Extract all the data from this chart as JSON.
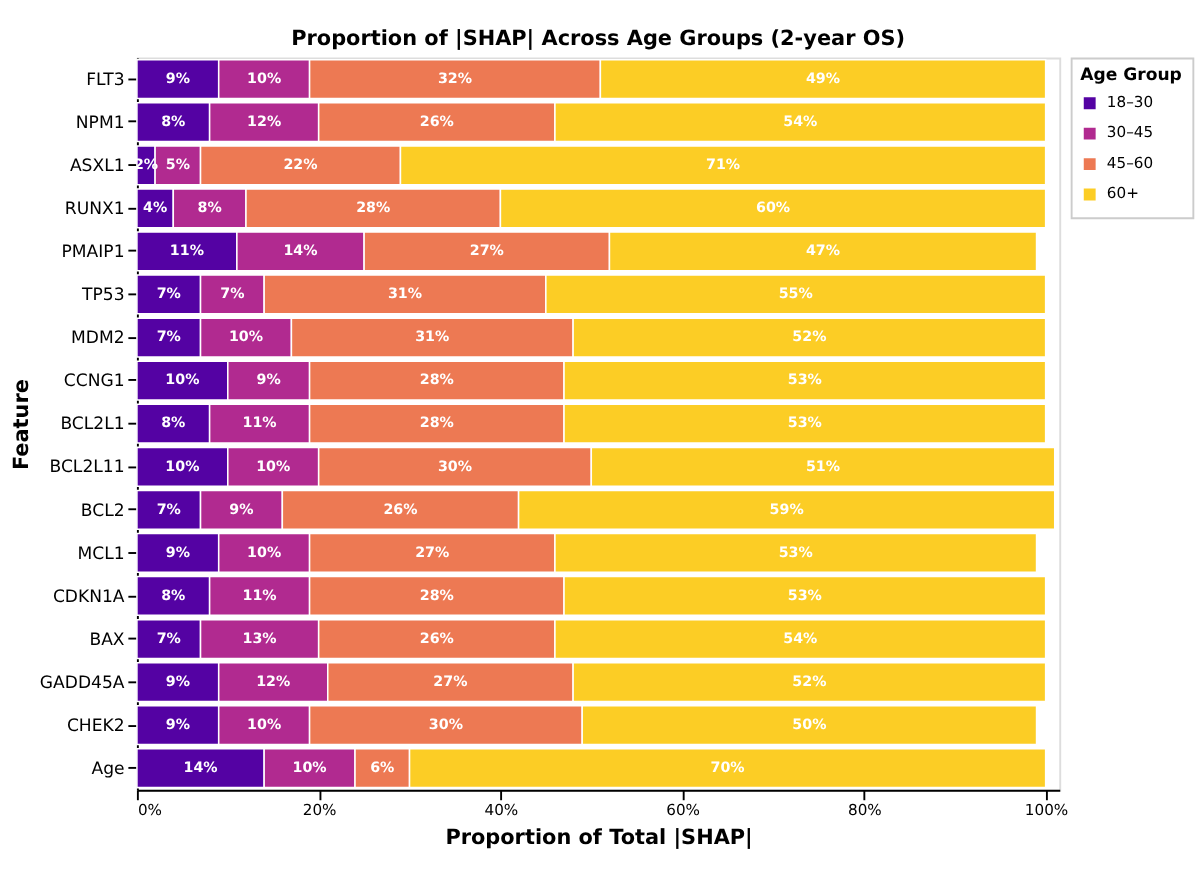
{
  "chart_data": {
    "type": "bar",
    "orientation": "horizontal",
    "stacked": true,
    "title": "Proportion of |SHAP| Across Age Groups (2-year OS)",
    "xlabel": "Proportion of Total |SHAP|",
    "ylabel": "Feature",
    "legend_title": "Age Group",
    "legend": "top right",
    "grid": false,
    "categories": [
      "FLT3",
      "NPM1",
      "ASXL1",
      "RUNX1",
      "PMAIP1",
      "TP53",
      "MDM2",
      "CCNG1",
      "BCL2L1",
      "BCL2L11",
      "BCL2",
      "MCL1",
      "CDKN1A",
      "BAX",
      "GADD45A",
      "CHEK2",
      "Age"
    ],
    "xlim": [
      0,
      1.015
    ],
    "xticks": [
      {
        "value": 0,
        "label": "0%"
      },
      {
        "value": 0.2,
        "label": "20%"
      },
      {
        "value": 0.4,
        "label": "40%"
      },
      {
        "value": 0.6,
        "label": "60%"
      },
      {
        "value": 0.8,
        "label": "80%"
      },
      {
        "value": 1,
        "label": "100%"
      }
    ],
    "series": [
      {
        "name": "18–30",
        "color": "#5402a3",
        "values": [
          0.09,
          0.08,
          0.02,
          0.04,
          0.11,
          0.07,
          0.07,
          0.1,
          0.08,
          0.1,
          0.07,
          0.09,
          0.08,
          0.07,
          0.09,
          0.09,
          0.14
        ],
        "value_labels": [
          "9%",
          "8%",
          "2%",
          "4%",
          "11%",
          "7%",
          "7%",
          "10%",
          "8%",
          "10%",
          "7%",
          "9%",
          "8%",
          "7%",
          "9%",
          "9%",
          "14%"
        ]
      },
      {
        "name": "30–45",
        "color": "#b12a90",
        "values": [
          0.1,
          0.12,
          0.05,
          0.08,
          0.14,
          0.07,
          0.1,
          0.09,
          0.11,
          0.1,
          0.09,
          0.1,
          0.11,
          0.13,
          0.12,
          0.1,
          0.1
        ],
        "value_labels": [
          "10%",
          "12%",
          "5%",
          "8%",
          "14%",
          "7%",
          "10%",
          "9%",
          "11%",
          "10%",
          "9%",
          "10%",
          "11%",
          "13%",
          "12%",
          "10%",
          "10%"
        ]
      },
      {
        "name": "45–60",
        "color": "#ed7953",
        "values": [
          0.32,
          0.26,
          0.22,
          0.28,
          0.27,
          0.31,
          0.31,
          0.28,
          0.28,
          0.3,
          0.26,
          0.27,
          0.28,
          0.26,
          0.27,
          0.3,
          0.06
        ],
        "value_labels": [
          "32%",
          "26%",
          "22%",
          "28%",
          "27%",
          "31%",
          "31%",
          "28%",
          "28%",
          "30%",
          "26%",
          "27%",
          "28%",
          "26%",
          "27%",
          "30%",
          "6%"
        ]
      },
      {
        "name": "60+",
        "color": "#fccd25",
        "values": [
          0.49,
          0.54,
          0.71,
          0.6,
          0.47,
          0.55,
          0.52,
          0.53,
          0.53,
          0.51,
          0.59,
          0.53,
          0.53,
          0.54,
          0.52,
          0.5,
          0.7
        ],
        "value_labels": [
          "49%",
          "54%",
          "71%",
          "60%",
          "47%",
          "55%",
          "52%",
          "53%",
          "53%",
          "51%",
          "59%",
          "53%",
          "53%",
          "54%",
          "52%",
          "50%",
          "70%"
        ]
      }
    ]
  }
}
